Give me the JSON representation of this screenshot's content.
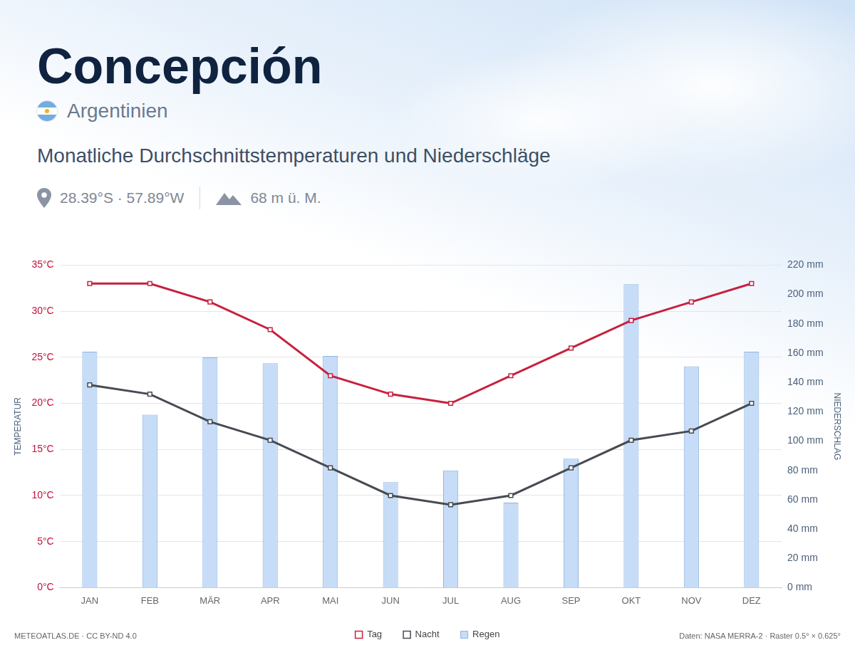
{
  "page": {
    "title": "Concepción",
    "country": "Argentinien",
    "subtitle": "Monatliche Durchschnittstemperaturen und Niederschläge",
    "coordinates": "28.39°S · 57.89°W",
    "elevation": "68 m ü. M.",
    "source_left": "METEOATLAS.DE · CC BY-ND 4.0",
    "source_right": "Daten: NASA MERRA-2 · Raster 0.5° × 0.625°"
  },
  "chart_data": {
    "type": "bar",
    "categories": [
      "JAN",
      "FEB",
      "MÄR",
      "APR",
      "MAI",
      "JUN",
      "JUL",
      "AUG",
      "SEP",
      "OKT",
      "NOV",
      "DEZ"
    ],
    "series": [
      {
        "name": "Tag",
        "type": "line",
        "color": "#c8203f",
        "marker": "square",
        "line_style": "solid",
        "values": [
          33,
          33,
          31,
          28,
          23,
          21,
          20,
          23,
          26,
          29,
          31,
          33
        ]
      },
      {
        "name": "Nacht",
        "type": "line",
        "color": "#474b52",
        "marker": "square",
        "line_style": "solid",
        "values": [
          22,
          21,
          18,
          16,
          13,
          10,
          9,
          10,
          13,
          16,
          17,
          20
        ]
      },
      {
        "name": "Regen",
        "type": "bar",
        "color": "#c6dcf7",
        "axis": "y2",
        "values": [
          161,
          118,
          157,
          153,
          158,
          72,
          80,
          58,
          88,
          207,
          151,
          161
        ]
      }
    ],
    "y_label": "TEMPERATUR",
    "y2_label": "NIEDERSCHLAG",
    "ylim": [
      0,
      35
    ],
    "yticks": [
      {
        "value": 0,
        "label": "0°C"
      },
      {
        "value": 5,
        "label": "5°C"
      },
      {
        "value": 10,
        "label": "10°C"
      },
      {
        "value": 15,
        "label": "15°C"
      },
      {
        "value": 20,
        "label": "20°C"
      },
      {
        "value": 25,
        "label": "25°C"
      },
      {
        "value": 30,
        "label": "30°C"
      },
      {
        "value": 35,
        "label": "35°C"
      }
    ],
    "y2lim": [
      0,
      220
    ],
    "y2ticks": [
      {
        "value": 0,
        "label": "0 mm"
      },
      {
        "value": 20,
        "label": "20 mm"
      },
      {
        "value": 40,
        "label": "40 mm"
      },
      {
        "value": 60,
        "label": "60 mm"
      },
      {
        "value": 80,
        "label": "80 mm"
      },
      {
        "value": 100,
        "label": "100 mm"
      },
      {
        "value": 120,
        "label": "120 mm"
      },
      {
        "value": 140,
        "label": "140 mm"
      },
      {
        "value": 160,
        "label": "160 mm"
      },
      {
        "value": 180,
        "label": "180 mm"
      },
      {
        "value": 200,
        "label": "200 mm"
      },
      {
        "value": 220,
        "label": "220 mm"
      }
    ],
    "grid": true,
    "legend": "bottom"
  }
}
